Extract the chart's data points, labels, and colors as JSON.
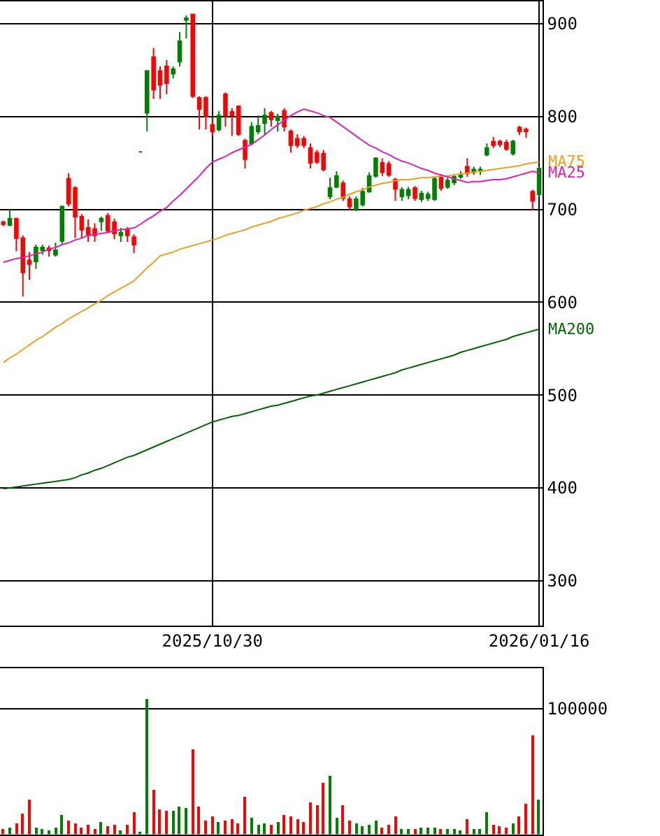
{
  "chart_data": [
    {
      "type": "candlestick",
      "categories": [
        null,
        null,
        null,
        null,
        null,
        null,
        null,
        null,
        null,
        null,
        null,
        null,
        null,
        null,
        null,
        null,
        null,
        null,
        null,
        null,
        null,
        null,
        null,
        null,
        null,
        null,
        null,
        null,
        null,
        null,
        null,
        null,
        "2025/10/30",
        null,
        null,
        null,
        null,
        null,
        null,
        null,
        null,
        null,
        null,
        null,
        null,
        null,
        null,
        null,
        null,
        null,
        null,
        null,
        null,
        null,
        null,
        null,
        null,
        null,
        null,
        null,
        null,
        null,
        null,
        null,
        null,
        null,
        null,
        null,
        null,
        null,
        null,
        null,
        null,
        null,
        null,
        null,
        null,
        null,
        null,
        null,
        null,
        null,
        "2026/01/16"
      ],
      "ohlc": [
        [
          686,
          688,
          682,
          684
        ],
        [
          683,
          700,
          682,
          690
        ],
        [
          690,
          691,
          655,
          669
        ],
        [
          669,
          672,
          606,
          632
        ],
        [
          645,
          654,
          624,
          641
        ],
        [
          644,
          662,
          636,
          659
        ],
        [
          656,
          662,
          651,
          659
        ],
        [
          658,
          661,
          649,
          656
        ],
        [
          651,
          664,
          649,
          656
        ],
        [
          666,
          704,
          663,
          703
        ],
        [
          733,
          739,
          703,
          706
        ],
        [
          723,
          725,
          669,
          692
        ],
        [
          692,
          695,
          669,
          678
        ],
        [
          680,
          689,
          665,
          672
        ],
        [
          679,
          685,
          665,
          672
        ],
        [
          687,
          692,
          677,
          690
        ],
        [
          693,
          696,
          675,
          677
        ],
        [
          686,
          690,
          668,
          674
        ],
        [
          672,
          680,
          665,
          675
        ],
        [
          678,
          681,
          665,
          672
        ],
        [
          670,
          673,
          653,
          662
        ],
        [
          762,
          762,
          762,
          762
        ],
        [
          804,
          850,
          784,
          849
        ],
        [
          864,
          874,
          819,
          829
        ],
        [
          849,
          854,
          819,
          834
        ],
        [
          854,
          861,
          824,
          836
        ],
        [
          846,
          854,
          841,
          851
        ],
        [
          859,
          891,
          854,
          881
        ],
        [
          904,
          909,
          884,
          906
        ],
        [
          910,
          910,
          820,
          822
        ],
        [
          820,
          822,
          786,
          808
        ],
        [
          820,
          822,
          786,
          800
        ],
        [
          791,
          799,
          779,
          784
        ],
        [
          786,
          806,
          784,
          801
        ],
        [
          824,
          826,
          789,
          801
        ],
        [
          805,
          809,
          779,
          801
        ],
        [
          811,
          812,
          779,
          781
        ],
        [
          774,
          776,
          744,
          754
        ],
        [
          771,
          794,
          769,
          789
        ],
        [
          784,
          801,
          781,
          790
        ],
        [
          793,
          809,
          781,
          801
        ],
        [
          804,
          806,
          789,
          797
        ],
        [
          796,
          803,
          784,
          800
        ],
        [
          806,
          809,
          784,
          789
        ],
        [
          784,
          786,
          761,
          769
        ],
        [
          776,
          781,
          766,
          769
        ],
        [
          776,
          779,
          766,
          769
        ],
        [
          766,
          771,
          744,
          750
        ],
        [
          761,
          764,
          749,
          751
        ],
        [
          760,
          764,
          741,
          743
        ],
        [
          714,
          734,
          711,
          723
        ],
        [
          724,
          741,
          723,
          736
        ],
        [
          728,
          731,
          709,
          712
        ],
        [
          711,
          714,
          699,
          703
        ],
        [
          700,
          714,
          698,
          711
        ],
        [
          705,
          723,
          703,
          719
        ],
        [
          719,
          740,
          718,
          736
        ],
        [
          736,
          756,
          734,
          755
        ],
        [
          750,
          755,
          736,
          740
        ],
        [
          749,
          752,
          735,
          737
        ],
        [
          732,
          734,
          709,
          722
        ],
        [
          714,
          724,
          709,
          721
        ],
        [
          715,
          724,
          711,
          721
        ],
        [
          723,
          725,
          709,
          712
        ],
        [
          711,
          720,
          708,
          717
        ],
        [
          712,
          719,
          709,
          716
        ],
        [
          711,
          735,
          709,
          733
        ],
        [
          734,
          738,
          720,
          723
        ],
        [
          724,
          734,
          722,
          731
        ],
        [
          729,
          738,
          726,
          735
        ],
        [
          735,
          741,
          733,
          737
        ],
        [
          746,
          755,
          735,
          739
        ],
        [
          740,
          746,
          737,
          743
        ],
        [
          741,
          746,
          737,
          743
        ],
        [
          759,
          771,
          757,
          766
        ],
        [
          773,
          778,
          766,
          769
        ],
        [
          773,
          775,
          767,
          770
        ],
        [
          772,
          775,
          763,
          765
        ],
        [
          760,
          775,
          758,
          773
        ],
        [
          788,
          790,
          780,
          784
        ],
        [
          786,
          788,
          777,
          784
        ],
        [
          719,
          721,
          699,
          709
        ],
        [
          716,
          746,
          714,
          744
        ]
      ],
      "colors": [
        "#ff0000",
        "#008000",
        "#ff0000",
        "#ff0000",
        "#ff0000",
        "#008000",
        "#008000",
        "#ff0000",
        "#008000",
        "#008000",
        "#ff0000",
        "#ff0000",
        "#ff0000",
        "#ff0000",
        "#ff0000",
        "#008000",
        "#ff0000",
        "#ff0000",
        "#008000",
        "#ff0000",
        "#ff0000",
        "#008000",
        "#008000",
        "#ff0000",
        "#ff0000",
        "#ff0000",
        "#008000",
        "#008000",
        "#008000",
        "#ff0000",
        "#ff0000",
        "#ff0000",
        "#ff0000",
        "#008000",
        "#ff0000",
        "#ff0000",
        "#ff0000",
        "#ff0000",
        "#008000",
        "#008000",
        "#008000",
        "#ff0000",
        "#008000",
        "#ff0000",
        "#ff0000",
        "#ff0000",
        "#ff0000",
        "#ff0000",
        "#ff0000",
        "#ff0000",
        "#008000",
        "#008000",
        "#ff0000",
        "#ff0000",
        "#008000",
        "#008000",
        "#008000",
        "#008000",
        "#ff0000",
        "#ff0000",
        "#ff0000",
        "#008000",
        "#008000",
        "#ff0000",
        "#008000",
        "#008000",
        "#008000",
        "#ff0000",
        "#008000",
        "#008000",
        "#008000",
        "#ff0000",
        "#008000",
        "#008000",
        "#008000",
        "#ff0000",
        "#ff0000",
        "#ff0000",
        "#008000",
        "#ff0000",
        "#ff0000",
        "#ff0000",
        "#008000"
      ],
      "series": [
        {
          "name": "MA75",
          "type": "line",
          "color": "#f0a020",
          "values": [
            535,
            540,
            544,
            549,
            554,
            559,
            563,
            568,
            573,
            577,
            582,
            586,
            590,
            594,
            598,
            602,
            607,
            611,
            615,
            619,
            623,
            630,
            637,
            643,
            650,
            652,
            654,
            657,
            659,
            661,
            663,
            665,
            667,
            669,
            672,
            674,
            676,
            678,
            681,
            683,
            685,
            687,
            690,
            692,
            694,
            696,
            699,
            701,
            703,
            706,
            708,
            711,
            713,
            716,
            719,
            721,
            724,
            726,
            728,
            729,
            731,
            732,
            732,
            733,
            734,
            734,
            735,
            736,
            736,
            737,
            738,
            739,
            740,
            741,
            742,
            743,
            744,
            745,
            746,
            747,
            749,
            750,
            751
          ]
        },
        {
          "name": "MA25",
          "type": "line",
          "color": "#e020b0",
          "values": [
            643,
            645,
            647,
            648,
            650,
            652,
            654,
            657,
            659,
            662,
            664,
            667,
            669,
            672,
            673,
            674,
            675,
            677,
            678,
            679,
            680,
            684,
            689,
            693,
            698,
            702,
            709,
            715,
            722,
            729,
            736,
            744,
            751,
            754,
            757,
            761,
            764,
            767,
            770,
            775,
            780,
            786,
            791,
            796,
            801,
            805,
            808,
            806,
            804,
            801,
            799,
            794,
            789,
            784,
            779,
            774,
            769,
            766,
            762,
            759,
            755,
            752,
            750,
            747,
            744,
            742,
            739,
            737,
            735,
            733,
            731,
            729,
            730,
            730,
            731,
            732,
            732,
            733,
            735,
            737,
            739,
            741,
            739
          ]
        },
        {
          "name": "MA200",
          "type": "line",
          "color": "#006400",
          "values": [
            399,
            400,
            401,
            402,
            403,
            404,
            405,
            406,
            407,
            408,
            409,
            411,
            414,
            416,
            419,
            421,
            424,
            427,
            430,
            433,
            435,
            438,
            441,
            444,
            447,
            450,
            453,
            456,
            459,
            462,
            465,
            468,
            471,
            473,
            475,
            477,
            478,
            480,
            482,
            484,
            486,
            488,
            489,
            491,
            493,
            495,
            497,
            499,
            500,
            502,
            504,
            506,
            508,
            510,
            512,
            514,
            516,
            518,
            520,
            522,
            524,
            527,
            529,
            531,
            533,
            535,
            537,
            539,
            541,
            543,
            546,
            548,
            550,
            552,
            554,
            556,
            558,
            560,
            563,
            565,
            567,
            569,
            571
          ]
        }
      ],
      "ylim": [
        252,
        924
      ],
      "yticks": [
        300,
        400,
        500,
        600,
        700,
        800,
        900
      ],
      "grid": true
    },
    {
      "type": "bar",
      "categories": [
        null,
        null,
        null,
        null,
        null,
        null,
        null,
        null,
        null,
        null,
        null,
        null,
        null,
        null,
        null,
        null,
        null,
        null,
        null,
        null,
        null,
        null,
        null,
        null,
        null,
        null,
        null,
        null,
        null,
        null,
        null,
        null,
        "2025/10/30",
        null,
        null,
        null,
        null,
        null,
        null,
        null,
        null,
        null,
        null,
        null,
        null,
        null,
        null,
        null,
        null,
        null,
        null,
        null,
        null,
        null,
        null,
        null,
        null,
        null,
        null,
        null,
        null,
        null,
        null,
        null,
        null,
        null,
        null,
        null,
        null,
        null,
        null,
        null,
        null,
        null,
        null,
        null,
        null,
        null,
        null,
        null,
        null,
        null,
        "2026/01/16"
      ],
      "values": [
        4000,
        5000,
        8000,
        16000,
        27000,
        5000,
        4000,
        3000,
        5000,
        15000,
        11000,
        8000,
        5000,
        7000,
        4000,
        10000,
        6000,
        7000,
        3000,
        7000,
        17000,
        2000,
        107000,
        35000,
        20000,
        19000,
        19000,
        22000,
        21000,
        67000,
        22000,
        11000,
        14000,
        10000,
        11000,
        12000,
        9000,
        30000,
        13000,
        7000,
        9000,
        7000,
        10000,
        15000,
        14000,
        12000,
        10000,
        25000,
        23000,
        41000,
        46000,
        13000,
        23000,
        11000,
        9000,
        6000,
        7000,
        11000,
        5000,
        7000,
        14000,
        4000,
        4000,
        4000,
        5000,
        5000,
        5000,
        4000,
        4000,
        4000,
        3000,
        12000,
        4000,
        4000,
        17000,
        7000,
        6000,
        5000,
        9000,
        14000,
        24000,
        79000,
        27000
      ],
      "colors": [
        "#ff0000",
        "#008000",
        "#ff0000",
        "#ff0000",
        "#ff0000",
        "#008000",
        "#008000",
        "#008000",
        "#008000",
        "#008000",
        "#ff0000",
        "#ff0000",
        "#ff0000",
        "#ff0000",
        "#ff0000",
        "#008000",
        "#ff0000",
        "#ff0000",
        "#008000",
        "#ff0000",
        "#ff0000",
        "#008000",
        "#008000",
        "#ff0000",
        "#ff0000",
        "#ff0000",
        "#008000",
        "#008000",
        "#008000",
        "#ff0000",
        "#ff0000",
        "#ff0000",
        "#ff0000",
        "#008000",
        "#ff0000",
        "#ff0000",
        "#ff0000",
        "#ff0000",
        "#008000",
        "#008000",
        "#008000",
        "#ff0000",
        "#008000",
        "#ff0000",
        "#ff0000",
        "#ff0000",
        "#ff0000",
        "#ff0000",
        "#ff0000",
        "#ff0000",
        "#008000",
        "#008000",
        "#ff0000",
        "#ff0000",
        "#008000",
        "#008000",
        "#008000",
        "#008000",
        "#ff0000",
        "#ff0000",
        "#ff0000",
        "#008000",
        "#008000",
        "#ff0000",
        "#008000",
        "#008000",
        "#008000",
        "#ff0000",
        "#008000",
        "#008000",
        "#008000",
        "#ff0000",
        "#008000",
        "#008000",
        "#008000",
        "#ff0000",
        "#ff0000",
        "#ff0000",
        "#008000",
        "#ff0000",
        "#ff0000",
        "#ff0000",
        "#008000"
      ],
      "ylim": [
        0,
        132000
      ],
      "yticks": [
        {
          "value": 0,
          "label": null
        },
        100000
      ],
      "grid": "y",
      "tick_labels": "y"
    }
  ]
}
